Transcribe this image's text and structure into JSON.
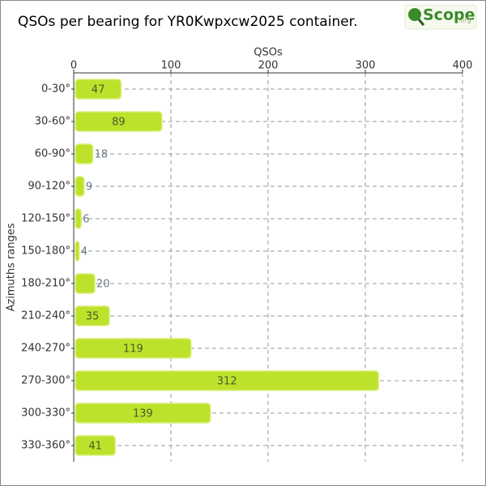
{
  "header": {
    "logo": "Scope",
    "logo_suffix": ".org"
  },
  "chart_data": {
    "type": "barh",
    "title": "QSOs per bearing for YR0Kwpxcw2025 container.",
    "x_label": "QSOs",
    "y_label": "Azimuths ranges",
    "categories": [
      "0-30°",
      "30-60°",
      "60-90°",
      "90-120°",
      "120-150°",
      "150-180°",
      "180-210°",
      "210-240°",
      "240-270°",
      "270-300°",
      "300-330°",
      "330-360°"
    ],
    "values": [
      47,
      89,
      18,
      9,
      6,
      4,
      20,
      35,
      119,
      312,
      139,
      41
    ],
    "color": "#bde22c",
    "xlim": [
      0,
      400
    ],
    "xticks": [
      0,
      100,
      200,
      300,
      400
    ],
    "grid": true
  }
}
